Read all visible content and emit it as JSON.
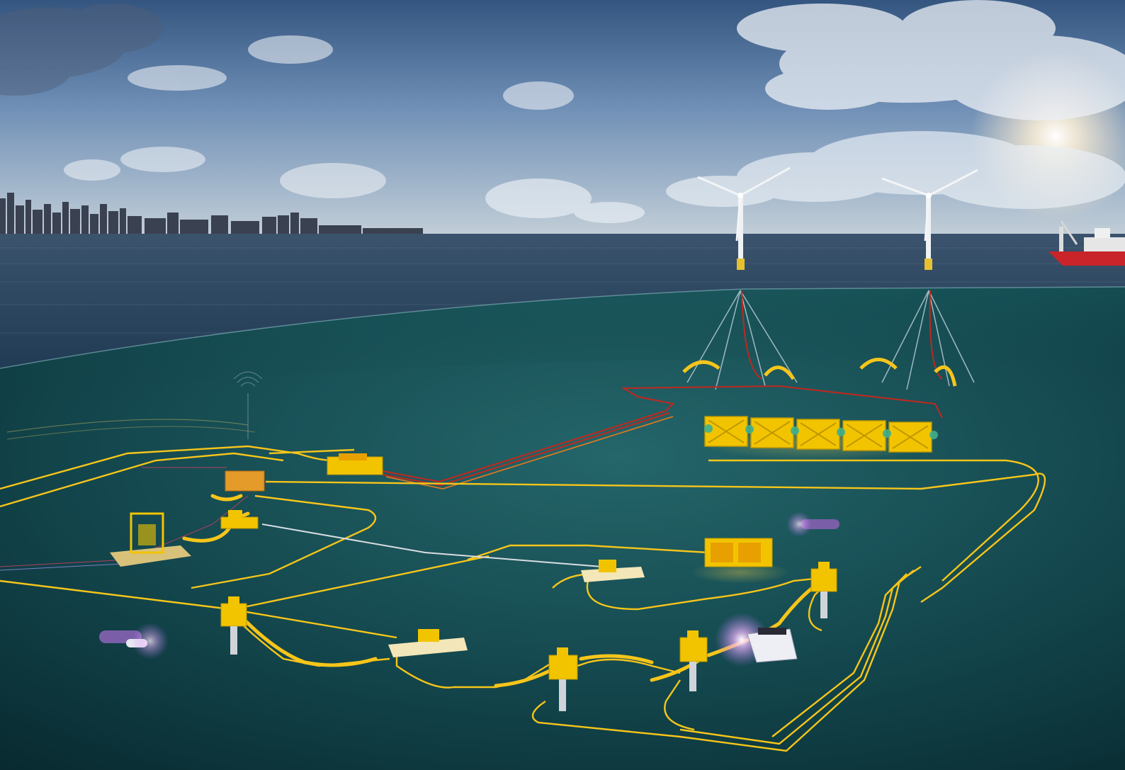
{
  "scene": {
    "colors": {
      "sky_top": "#3b5f8f",
      "sky_mid": "#7f9fc4",
      "sky_horizon": "#c9d5df",
      "sea_surface": "#2a4760",
      "seabed_dark": "#0b2f35",
      "seabed_light": "#1d5a5e",
      "equipment_yellow": "#f2c400",
      "cable_yellow": "#f7c51a",
      "cable_red": "#c0281f",
      "cable_white": "#d8dde2",
      "vessel_red": "#c8242a",
      "sun_glow": "#fff6e0"
    },
    "icons": [
      "city-skyline",
      "wind-turbine",
      "support-vessel",
      "battery-storage-module",
      "subsea-manifold",
      "subsea-christmas-tree",
      "subsea-template",
      "autonomous-underwater-vehicle",
      "remotely-operated-vehicle"
    ]
  }
}
